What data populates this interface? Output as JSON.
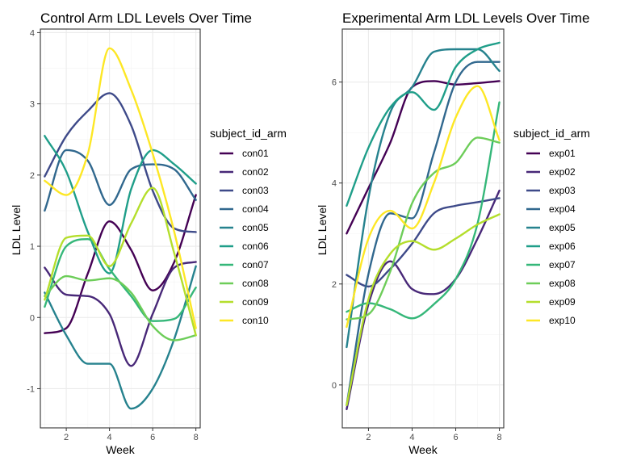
{
  "chart_data": [
    {
      "type": "line",
      "title": "Control Arm LDL Levels Over Time",
      "xlabel": "Week",
      "ylabel": "LDL Level",
      "xlim": [
        0.8,
        8.2
      ],
      "ylim": [
        -1.55,
        4.05
      ],
      "xticks": [
        2,
        4,
        6,
        8
      ],
      "yticks": [
        -1,
        0,
        1,
        2,
        3,
        4
      ],
      "x": [
        1,
        2,
        3,
        4,
        5,
        6,
        7,
        8
      ],
      "grid": true,
      "legend": {
        "title": "subject_id_arm",
        "position": "right"
      },
      "series": [
        {
          "name": "con01",
          "color": "#440154",
          "values": [
            -0.22,
            -0.15,
            0.62,
            1.35,
            0.95,
            0.38,
            0.78,
            1.72
          ]
        },
        {
          "name": "con02",
          "color": "#482878",
          "values": [
            0.7,
            0.32,
            0.3,
            0.05,
            -0.68,
            0.05,
            0.7,
            0.78
          ]
        },
        {
          "name": "con03",
          "color": "#3E4A89",
          "values": [
            1.98,
            2.55,
            2.9,
            3.15,
            2.7,
            1.78,
            1.25,
            1.2
          ]
        },
        {
          "name": "con04",
          "color": "#31688E",
          "values": [
            1.5,
            2.35,
            2.2,
            1.58,
            2.08,
            2.15,
            2.08,
            1.65
          ]
        },
        {
          "name": "con05",
          "color": "#26828E",
          "values": [
            0.35,
            -0.25,
            -0.65,
            -0.65,
            -1.28,
            -1.0,
            -0.3,
            0.72
          ]
        },
        {
          "name": "con06",
          "color": "#1F9E89",
          "values": [
            2.55,
            2.05,
            1.2,
            0.62,
            1.8,
            2.35,
            2.15,
            1.88
          ]
        },
        {
          "name": "con07",
          "color": "#35B779",
          "values": [
            0.15,
            1.0,
            1.1,
            0.68,
            0.3,
            -0.05,
            -0.02,
            0.42
          ]
        },
        {
          "name": "con08",
          "color": "#6DCD59",
          "values": [
            0.3,
            0.58,
            0.52,
            0.55,
            0.35,
            -0.12,
            -0.32,
            -0.25
          ]
        },
        {
          "name": "con09",
          "color": "#B4DE2C",
          "values": [
            0.25,
            1.12,
            1.15,
            0.72,
            1.32,
            1.82,
            0.9,
            -0.25
          ]
        },
        {
          "name": "con10",
          "color": "#FDE725",
          "values": [
            1.92,
            1.72,
            2.3,
            3.78,
            3.2,
            2.3,
            1.2,
            -0.15
          ]
        }
      ]
    },
    {
      "type": "line",
      "title": "Experimental Arm LDL Levels Over Time",
      "xlabel": "Week",
      "ylabel": "LDL Level",
      "xlim": [
        0.8,
        8.2
      ],
      "ylim": [
        -0.85,
        7.05
      ],
      "xticks": [
        2,
        4,
        6,
        8
      ],
      "yticks": [
        0,
        2,
        4,
        6
      ],
      "x": [
        1,
        2,
        3,
        4,
        5,
        6,
        7,
        8
      ],
      "grid": true,
      "legend": {
        "title": "subject_id_arm",
        "position": "right"
      },
      "series": [
        {
          "name": "exp01",
          "color": "#440154",
          "values": [
            3.0,
            3.9,
            4.8,
            5.9,
            6.02,
            5.95,
            5.98,
            6.02
          ]
        },
        {
          "name": "exp02",
          "color": "#482878",
          "values": [
            -0.48,
            1.6,
            2.45,
            1.9,
            1.8,
            2.1,
            2.9,
            3.85
          ]
        },
        {
          "name": "exp03",
          "color": "#3E4A89",
          "values": [
            2.18,
            1.95,
            2.3,
            2.8,
            3.4,
            3.55,
            3.62,
            3.7
          ]
        },
        {
          "name": "exp04",
          "color": "#31688E",
          "values": [
            -0.4,
            2.2,
            3.4,
            3.3,
            4.6,
            6.0,
            6.4,
            6.4
          ]
        },
        {
          "name": "exp05",
          "color": "#26828E",
          "values": [
            0.75,
            3.7,
            5.4,
            5.9,
            6.6,
            6.65,
            6.65,
            6.22
          ]
        },
        {
          "name": "exp06",
          "color": "#1F9E89",
          "values": [
            3.55,
            4.7,
            5.5,
            5.8,
            5.45,
            6.3,
            6.65,
            6.78
          ]
        },
        {
          "name": "exp07",
          "color": "#35B779",
          "values": [
            1.45,
            1.62,
            1.5,
            1.32,
            1.6,
            2.1,
            3.2,
            5.6
          ]
        },
        {
          "name": "exp08",
          "color": "#6DCD59",
          "values": [
            1.3,
            1.4,
            2.25,
            3.6,
            4.2,
            4.4,
            4.9,
            4.8
          ]
        },
        {
          "name": "exp09",
          "color": "#B4DE2C",
          "values": [
            -0.4,
            1.7,
            2.6,
            2.85,
            2.68,
            2.9,
            3.18,
            3.38
          ]
        },
        {
          "name": "exp10",
          "color": "#FDE725",
          "values": [
            1.15,
            2.9,
            3.45,
            3.1,
            4.0,
            5.3,
            5.92,
            4.85
          ]
        }
      ]
    }
  ]
}
